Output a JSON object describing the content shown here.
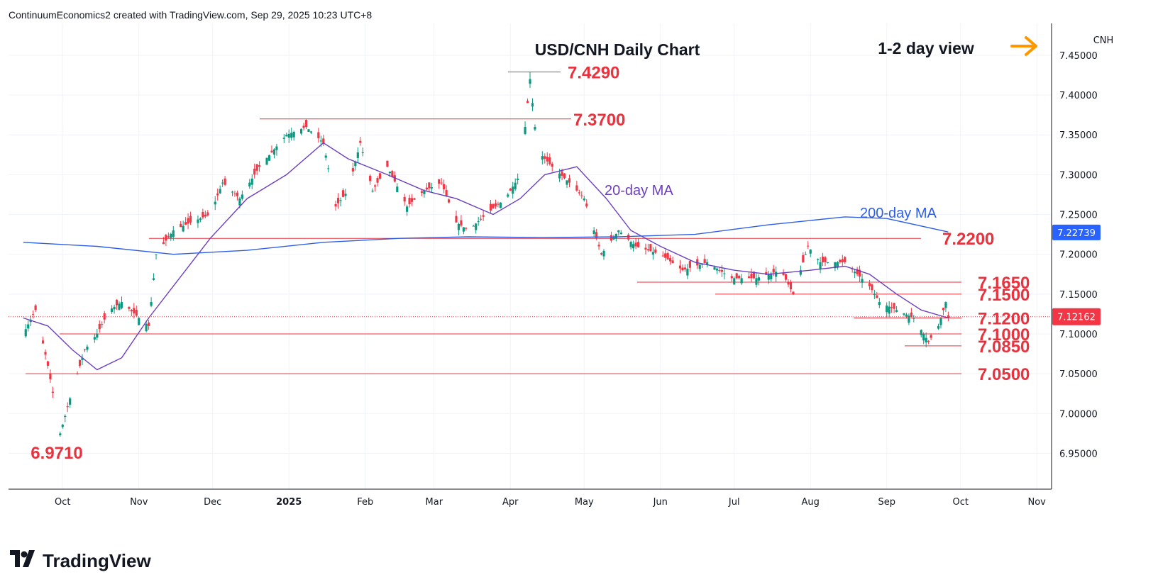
{
  "header": {
    "attribution": "ContinuumEconomics2 created with TradingView.com, Sep 29, 2025 10:23 UTC+8"
  },
  "brand": {
    "name": "TradingView"
  },
  "chart_data": {
    "type": "candlestick",
    "title": "USD/CNH Daily Chart",
    "view_label": "1-2 day view",
    "view_arrow": "right",
    "symbol": "CNH",
    "last_price": "7.12162",
    "ma200_price": "7.22739",
    "ylim": [
      6.905,
      7.49
    ],
    "y_ticks": [
      "7.45000",
      "7.40000",
      "7.35000",
      "7.30000",
      "7.25000",
      "7.20000",
      "7.15000",
      "7.10000",
      "7.05000",
      "7.00000",
      "6.95000"
    ],
    "x_ticks": [
      "Oct",
      "Nov",
      "Dec",
      "2025",
      "Feb",
      "Mar",
      "Apr",
      "May",
      "Jun",
      "Jul",
      "Aug",
      "Sep",
      "Oct",
      "Nov"
    ],
    "grid": true,
    "levels": [
      {
        "label": "7.4290",
        "value": 7.429
      },
      {
        "label": "7.3700",
        "value": 7.37
      },
      {
        "label": "7.2200",
        "value": 7.22
      },
      {
        "label": "7.1650",
        "value": 7.165
      },
      {
        "label": "7.1500",
        "value": 7.15
      },
      {
        "label": "7.1200",
        "value": 7.12
      },
      {
        "label": "7.1000",
        "value": 7.1
      },
      {
        "label": "7.0850",
        "value": 7.085
      },
      {
        "label": "7.0500",
        "value": 7.05
      },
      {
        "label": "6.9710",
        "value": 6.971
      }
    ],
    "ma_labels": {
      "ma20": "20-day MA",
      "ma200": "200-day MA"
    },
    "colors": {
      "up": "#089981",
      "down": "#f23645",
      "level": "#e8323d",
      "ma20": "#6c3fc0",
      "ma200": "#2d5ee8",
      "arrow": "#ff9800",
      "last_badge": "#f23645",
      "ma200_badge": "#2962ff"
    },
    "price_path": [
      [
        "2024-09-15",
        7.1
      ],
      [
        "2024-09-20",
        7.13
      ],
      [
        "2024-09-25",
        7.06
      ],
      [
        "2024-09-30",
        6.975
      ],
      [
        "2024-10-05",
        7.03
      ],
      [
        "2024-10-10",
        7.08
      ],
      [
        "2024-10-15",
        7.1
      ],
      [
        "2024-10-20",
        7.13
      ],
      [
        "2024-10-25",
        7.14
      ],
      [
        "2024-11-01",
        7.12
      ],
      [
        "2024-11-05",
        7.11
      ],
      [
        "2024-11-08",
        7.2
      ],
      [
        "2024-11-15",
        7.23
      ],
      [
        "2024-11-22",
        7.24
      ],
      [
        "2024-11-30",
        7.25
      ],
      [
        "2024-12-05",
        7.29
      ],
      [
        "2024-12-12",
        7.27
      ],
      [
        "2024-12-20",
        7.31
      ],
      [
        "2024-12-31",
        7.35
      ],
      [
        "2025-01-08",
        7.36
      ],
      [
        "2025-01-15",
        7.34
      ],
      [
        "2025-01-20",
        7.26
      ],
      [
        "2025-01-25",
        7.28
      ],
      [
        "2025-01-30",
        7.34
      ],
      [
        "2025-02-04",
        7.28
      ],
      [
        "2025-02-10",
        7.31
      ],
      [
        "2025-02-18",
        7.26
      ],
      [
        "2025-02-25",
        7.28
      ],
      [
        "2025-03-04",
        7.29
      ],
      [
        "2025-03-10",
        7.24
      ],
      [
        "2025-03-15",
        7.23
      ],
      [
        "2025-03-22",
        7.25
      ],
      [
        "2025-03-30",
        7.27
      ],
      [
        "2025-04-05",
        7.3
      ],
      [
        "2025-04-09",
        7.42
      ],
      [
        "2025-04-12",
        7.33
      ],
      [
        "2025-04-18",
        7.31
      ],
      [
        "2025-04-25",
        7.29
      ],
      [
        "2025-05-01",
        7.27
      ],
      [
        "2025-05-08",
        7.2
      ],
      [
        "2025-05-15",
        7.23
      ],
      [
        "2025-05-22",
        7.21
      ],
      [
        "2025-06-01",
        7.2
      ],
      [
        "2025-06-10",
        7.18
      ],
      [
        "2025-06-20",
        7.19
      ],
      [
        "2025-06-30",
        7.17
      ],
      [
        "2025-07-10",
        7.17
      ],
      [
        "2025-07-20",
        7.18
      ],
      [
        "2025-07-25",
        7.15
      ],
      [
        "2025-07-31",
        7.21
      ],
      [
        "2025-08-05",
        7.19
      ],
      [
        "2025-08-15",
        7.19
      ],
      [
        "2025-08-25",
        7.16
      ],
      [
        "2025-08-29",
        7.14
      ],
      [
        "2025-09-05",
        7.13
      ],
      [
        "2025-09-12",
        7.12
      ],
      [
        "2025-09-18",
        7.09
      ],
      [
        "2025-09-22",
        7.11
      ],
      [
        "2025-09-25",
        7.14
      ],
      [
        "2025-09-26",
        7.12
      ]
    ],
    "ma20_path": [
      [
        "2024-09-15",
        7.12
      ],
      [
        "2024-09-25",
        7.11
      ],
      [
        "2024-10-05",
        7.08
      ],
      [
        "2024-10-15",
        7.055
      ],
      [
        "2024-10-25",
        7.07
      ],
      [
        "2024-11-05",
        7.12
      ],
      [
        "2024-11-15",
        7.16
      ],
      [
        "2024-11-30",
        7.22
      ],
      [
        "2024-12-15",
        7.27
      ],
      [
        "2024-12-31",
        7.3
      ],
      [
        "2025-01-15",
        7.34
      ],
      [
        "2025-01-25",
        7.32
      ],
      [
        "2025-02-10",
        7.3
      ],
      [
        "2025-02-25",
        7.28
      ],
      [
        "2025-03-10",
        7.27
      ],
      [
        "2025-03-25",
        7.25
      ],
      [
        "2025-04-05",
        7.27
      ],
      [
        "2025-04-15",
        7.3
      ],
      [
        "2025-04-28",
        7.31
      ],
      [
        "2025-05-10",
        7.27
      ],
      [
        "2025-05-20",
        7.23
      ],
      [
        "2025-06-01",
        7.21
      ],
      [
        "2025-06-15",
        7.19
      ],
      [
        "2025-07-01",
        7.18
      ],
      [
        "2025-07-15",
        7.175
      ],
      [
        "2025-08-01",
        7.18
      ],
      [
        "2025-08-15",
        7.185
      ],
      [
        "2025-08-25",
        7.175
      ],
      [
        "2025-09-05",
        7.15
      ],
      [
        "2025-09-15",
        7.13
      ],
      [
        "2025-09-26",
        7.12
      ]
    ],
    "ma200_path": [
      [
        "2024-09-15",
        7.215
      ],
      [
        "2024-10-15",
        7.21
      ],
      [
        "2024-11-15",
        7.2
      ],
      [
        "2024-12-15",
        7.205
      ],
      [
        "2025-01-15",
        7.215
      ],
      [
        "2025-02-15",
        7.22
      ],
      [
        "2025-03-15",
        7.222
      ],
      [
        "2025-04-15",
        7.221
      ],
      [
        "2025-05-15",
        7.222
      ],
      [
        "2025-06-15",
        7.225
      ],
      [
        "2025-07-15",
        7.237
      ],
      [
        "2025-08-15",
        7.247
      ],
      [
        "2025-09-01",
        7.245
      ],
      [
        "2025-09-26",
        7.228
      ]
    ],
    "min_label_date": "2024-09-30",
    "max_label_date": "2025-04-09"
  }
}
